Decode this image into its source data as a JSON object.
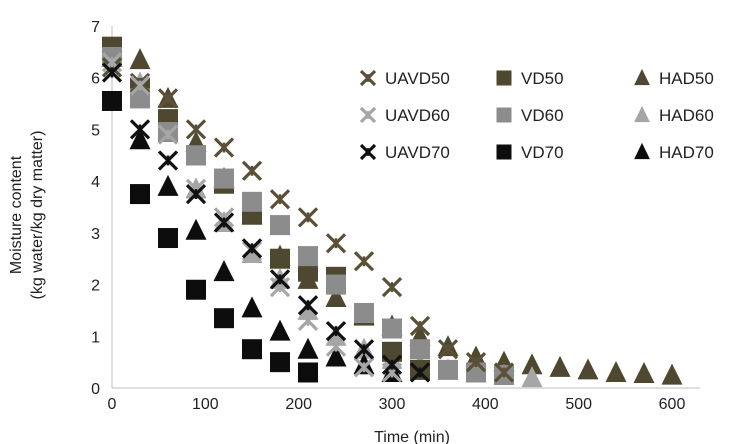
{
  "chart_data": {
    "type": "scatter",
    "title": "",
    "xlabel": "Time (min)",
    "ylabel_lines": [
      "Moisture content",
      "(kg water/kg dry matter)"
    ],
    "xlim": [
      0,
      630
    ],
    "ylim": [
      0,
      7
    ],
    "xticks": [
      0,
      100,
      200,
      300,
      400,
      500,
      600
    ],
    "yticks": [
      0,
      1,
      2,
      3,
      4,
      5,
      6,
      7
    ],
    "grid": false,
    "legend_position": "right",
    "series": [
      {
        "name": "UAVD50",
        "marker": "asterisk",
        "color": "#5a5038",
        "x": [
          0,
          30,
          60,
          90,
          120,
          150,
          180,
          210,
          240,
          270,
          300,
          330,
          360,
          390,
          420
        ],
        "y": [
          6.2,
          5.9,
          5.6,
          5.0,
          4.65,
          4.2,
          3.65,
          3.3,
          2.8,
          2.45,
          1.95,
          1.2,
          0.75,
          0.5,
          0.3
        ]
      },
      {
        "name": "UAVD60",
        "marker": "asterisk",
        "color": "#a6a6a6",
        "x": [
          0,
          30,
          60,
          90,
          120,
          150,
          180,
          210,
          240,
          270,
          300
        ],
        "y": [
          6.3,
          5.85,
          4.9,
          3.85,
          3.3,
          2.65,
          1.95,
          1.3,
          0.8,
          0.4,
          0.3
        ]
      },
      {
        "name": "UAVD70",
        "marker": "asterisk",
        "color": "#111111",
        "x": [
          0,
          30,
          60,
          90,
          120,
          150,
          180,
          210,
          240,
          270,
          300,
          330
        ],
        "y": [
          6.1,
          5.0,
          4.4,
          3.75,
          3.2,
          2.7,
          2.1,
          1.6,
          1.1,
          0.75,
          0.45,
          0.3
        ]
      },
      {
        "name": "VD50",
        "marker": "square",
        "color": "#4f4830",
        "x": [
          0,
          30,
          60,
          90,
          120,
          150,
          180,
          210,
          240,
          270,
          300,
          330
        ],
        "y": [
          6.6,
          5.8,
          5.2,
          4.5,
          3.95,
          3.35,
          2.5,
          2.25,
          2.15,
          1.4,
          0.7,
          0.35
        ]
      },
      {
        "name": "VD60",
        "marker": "square",
        "color": "#8c8c8c",
        "x": [
          0,
          30,
          60,
          90,
          120,
          150,
          180,
          210,
          240,
          270,
          300,
          330,
          360,
          390,
          420
        ],
        "y": [
          6.4,
          5.6,
          4.95,
          4.5,
          4.05,
          3.6,
          3.15,
          2.55,
          2.0,
          1.45,
          1.15,
          0.75,
          0.35,
          0.3,
          0.25
        ]
      },
      {
        "name": "VD70",
        "marker": "square",
        "color": "#0d0d0d",
        "x": [
          0,
          30,
          60,
          90,
          120,
          150,
          180,
          210
        ],
        "y": [
          5.55,
          3.75,
          2.9,
          1.9,
          1.35,
          0.75,
          0.5,
          0.3
        ]
      },
      {
        "name": "HAD50",
        "marker": "triangle",
        "color": "#4f4830",
        "x": [
          0,
          30,
          60,
          90,
          120,
          150,
          180,
          210,
          240,
          270,
          300,
          330,
          360,
          390,
          420,
          450,
          480,
          510,
          540,
          570,
          600
        ],
        "y": [
          6.55,
          6.35,
          5.6,
          4.75,
          4.05,
          3.35,
          2.55,
          2.1,
          1.75,
          1.4,
          1.2,
          1.0,
          0.8,
          0.6,
          0.5,
          0.45,
          0.4,
          0.35,
          0.3,
          0.28,
          0.25
        ]
      },
      {
        "name": "HAD60",
        "marker": "triangle",
        "color": "#a6a6a6",
        "x": [
          0,
          30,
          60,
          90,
          120,
          150,
          180,
          210,
          240,
          270,
          300,
          330,
          360,
          390,
          420,
          450
        ],
        "y": [
          6.4,
          5.9,
          5.0,
          3.85,
          3.2,
          2.6,
          2.1,
          1.5,
          1.0,
          0.75,
          0.55,
          0.45,
          0.35,
          0.3,
          0.25,
          0.2
        ]
      },
      {
        "name": "HAD70",
        "marker": "triangle",
        "color": "#0d0d0d",
        "x": [
          0,
          30,
          60,
          90,
          120,
          150,
          180,
          210,
          240,
          270,
          300
        ],
        "y": [
          6.4,
          4.8,
          3.9,
          3.05,
          2.25,
          1.55,
          1.1,
          0.75,
          0.6,
          0.45,
          0.3
        ]
      }
    ]
  }
}
